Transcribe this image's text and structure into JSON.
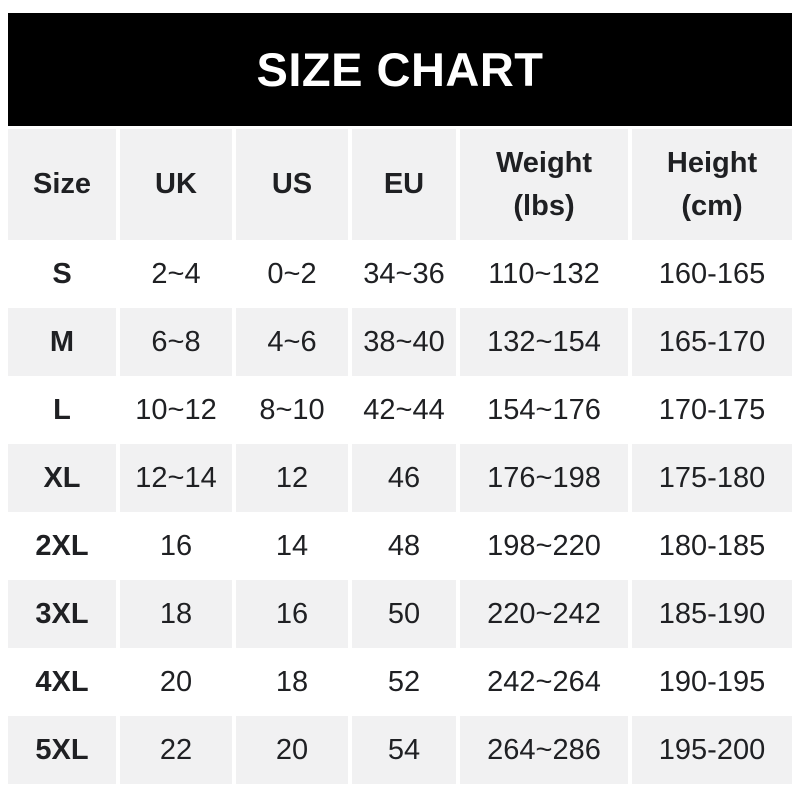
{
  "banner": {
    "title": "SIZE CHART"
  },
  "colors": {
    "banner_bg": "#000000",
    "banner_text": "#ffffff",
    "row_stripe": "#f1f1f2",
    "text_dark": "#1f2023"
  },
  "chart_data": {
    "type": "table",
    "title": "SIZE CHART",
    "columns": [
      {
        "label": "Size",
        "sub": ""
      },
      {
        "label": "UK",
        "sub": ""
      },
      {
        "label": "US",
        "sub": ""
      },
      {
        "label": "EU",
        "sub": ""
      },
      {
        "label": "Weight",
        "sub": "(lbs)"
      },
      {
        "label": "Height",
        "sub": "(cm)"
      }
    ],
    "rows": [
      [
        "S",
        "2~4",
        "0~2",
        "34~36",
        "110~132",
        "160-165"
      ],
      [
        "M",
        "6~8",
        "4~6",
        "38~40",
        "132~154",
        "165-170"
      ],
      [
        "L",
        "10~12",
        "8~10",
        "42~44",
        "154~176",
        "170-175"
      ],
      [
        "XL",
        "12~14",
        "12",
        "46",
        "176~198",
        "175-180"
      ],
      [
        "2XL",
        "16",
        "14",
        "48",
        "198~220",
        "180-185"
      ],
      [
        "3XL",
        "18",
        "16",
        "50",
        "220~242",
        "185-190"
      ],
      [
        "4XL",
        "20",
        "18",
        "52",
        "242~264",
        "190-195"
      ],
      [
        "5XL",
        "22",
        "20",
        "54",
        "264~286",
        "195-200"
      ]
    ]
  }
}
